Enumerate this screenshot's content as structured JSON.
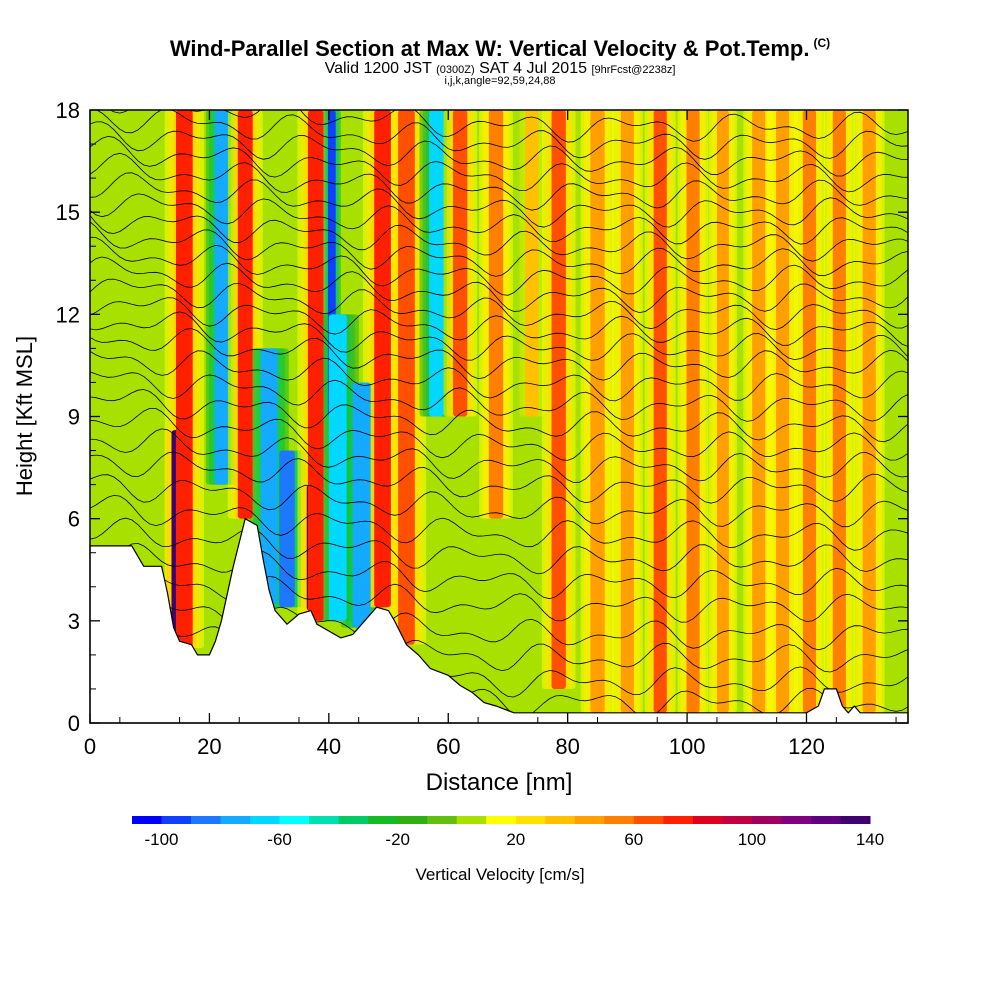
{
  "header": {
    "title": "Wind-Parallel Section at Max W: Vertical Velocity & Pot.Temp.",
    "title_tag": "(C)",
    "valid_prefix": "Valid 1200 JST",
    "valid_utc": "(0300Z)",
    "valid_date": "SAT 4 Jul 2015",
    "forecast": "[9hrFcst@2238z]",
    "indices": "i,j,k,angle=92,59,24,88"
  },
  "chart_data": {
    "type": "heatmap",
    "xlabel": "Distance [nm]",
    "ylabel": "Height [Kft MSL]",
    "xlim": [
      0,
      137
    ],
    "ylim": [
      0,
      18
    ],
    "x_ticks": [
      0,
      20,
      40,
      60,
      80,
      100,
      120
    ],
    "y_ticks": [
      0,
      3,
      6,
      9,
      12,
      15,
      18
    ],
    "terrain": [
      [
        0,
        5.2
      ],
      [
        7,
        5.2
      ],
      [
        9,
        4.6
      ],
      [
        12,
        4.6
      ],
      [
        13,
        3.8
      ],
      [
        14,
        2.8
      ],
      [
        15,
        2.4
      ],
      [
        17,
        2.3
      ],
      [
        18,
        2.0
      ],
      [
        20,
        2.0
      ],
      [
        21,
        2.4
      ],
      [
        22,
        3.0
      ],
      [
        24,
        4.6
      ],
      [
        26,
        6.0
      ],
      [
        28,
        5.8
      ],
      [
        29,
        4.8
      ],
      [
        30,
        3.9
      ],
      [
        31,
        3.3
      ],
      [
        33,
        2.9
      ],
      [
        35,
        3.2
      ],
      [
        37,
        3.3
      ],
      [
        38,
        2.9
      ],
      [
        40,
        2.7
      ],
      [
        42,
        2.5
      ],
      [
        44,
        2.6
      ],
      [
        46,
        3.0
      ],
      [
        48,
        3.4
      ],
      [
        50,
        3.3
      ],
      [
        51,
        3.0
      ],
      [
        53,
        2.3
      ],
      [
        55,
        2.0
      ],
      [
        57,
        1.6
      ],
      [
        60,
        1.4
      ],
      [
        62,
        1.1
      ],
      [
        64,
        0.9
      ],
      [
        66,
        0.6
      ],
      [
        68,
        0.5
      ],
      [
        71,
        0.3
      ],
      [
        74,
        0.3
      ],
      [
        85,
        0.3
      ],
      [
        100,
        0.3
      ],
      [
        120,
        0.3
      ],
      [
        122,
        0.5
      ],
      [
        123,
        1.0
      ],
      [
        125,
        1.0
      ],
      [
        126,
        0.5
      ],
      [
        127,
        0.3
      ],
      [
        128,
        0.5
      ],
      [
        129,
        0.3
      ],
      [
        137,
        0.3
      ]
    ],
    "w_bands": [
      {
        "x": 14.5,
        "w": 1.7,
        "v": 130,
        "z0": 2.6,
        "z1": 8.6
      },
      {
        "x": 15.8,
        "w": 2.8,
        "v": 70,
        "z0": 2.2,
        "z1": 18
      },
      {
        "x": 22,
        "w": 2.2,
        "v": -75,
        "z0": 7,
        "z1": 18
      },
      {
        "x": 26,
        "w": 2.5,
        "v": 70,
        "z0": 6,
        "z1": 18
      },
      {
        "x": 30,
        "w": 2.8,
        "v": -75,
        "z0": 3.5,
        "z1": 11
      },
      {
        "x": 33,
        "w": 2.6,
        "v": -85,
        "z0": 3.4,
        "z1": 8
      },
      {
        "x": 37,
        "w": 1.4,
        "v": 120,
        "z0": 3.3,
        "z1": 7
      },
      {
        "x": 37.8,
        "w": 2.6,
        "v": 70,
        "z0": 3,
        "z1": 18
      },
      {
        "x": 40.5,
        "w": 1.3,
        "v": -100,
        "z0": 9,
        "z1": 18
      },
      {
        "x": 41.5,
        "w": 3,
        "v": -65,
        "z0": 3,
        "z1": 12
      },
      {
        "x": 45.5,
        "w": 3,
        "v": -80,
        "z0": 2.8,
        "z1": 10
      },
      {
        "x": 49,
        "w": 2.8,
        "v": 70,
        "z0": 3.4,
        "z1": 18
      },
      {
        "x": 53,
        "w": 1.4,
        "v": 120,
        "z0": 2.5,
        "z1": 7
      },
      {
        "x": 53,
        "w": 2.8,
        "v": 65,
        "z0": 2.3,
        "z1": 18
      },
      {
        "x": 58,
        "w": 2.4,
        "v": -65,
        "z0": 9,
        "z1": 18
      },
      {
        "x": 62,
        "w": 2.4,
        "v": 65,
        "z0": 9,
        "z1": 18
      },
      {
        "x": 68,
        "w": 2.4,
        "v": 50,
        "z0": 6,
        "z1": 18
      },
      {
        "x": 74,
        "w": 2.2,
        "v": 30,
        "z0": 9,
        "z1": 18
      },
      {
        "x": 78.5,
        "w": 2.4,
        "v": 60,
        "z0": 1,
        "z1": 18
      },
      {
        "x": 85,
        "w": 2.4,
        "v": 45,
        "z0": 0.3,
        "z1": 18
      },
      {
        "x": 90,
        "w": 2.2,
        "v": 45,
        "z0": 0.3,
        "z1": 18
      },
      {
        "x": 95.5,
        "w": 2.2,
        "v": 60,
        "z0": 0.3,
        "z1": 18
      },
      {
        "x": 101,
        "w": 2.2,
        "v": 50,
        "z0": 0.3,
        "z1": 18
      },
      {
        "x": 106,
        "w": 2,
        "v": 40,
        "z0": 0.3,
        "z1": 18
      },
      {
        "x": 112,
        "w": 2.2,
        "v": 45,
        "z0": 0.3,
        "z1": 18
      },
      {
        "x": 116,
        "w": 2.2,
        "v": 45,
        "z0": 0.3,
        "z1": 18
      },
      {
        "x": 120.5,
        "w": 2.2,
        "v": 50,
        "z0": 0.3,
        "z1": 18
      },
      {
        "x": 125.5,
        "w": 2.2,
        "v": 50,
        "z0": 0.3,
        "z1": 18
      },
      {
        "x": 130.5,
        "w": 2.2,
        "v": 45,
        "z0": 0.3,
        "z1": 18
      }
    ],
    "theta_levels": [
      0.6,
      1.2,
      1.9,
      2.6,
      3.4,
      4.1,
      4.8,
      5.5,
      6.2,
      6.9,
      7.5,
      8.1,
      8.7,
      9.3,
      9.9,
      10.5,
      11.0,
      11.5,
      12.0,
      12.5,
      13.0,
      13.5,
      14.0,
      14.5,
      15.0,
      15.5,
      16.0,
      16.5,
      17.0,
      17.5
    ]
  },
  "colorbar": {
    "label": "Vertical Velocity [cm/s]",
    "ticks": [
      "-100",
      "-60",
      "-20",
      "20",
      "60",
      "100",
      "140"
    ],
    "colors": [
      "#0000ff",
      "#1040ff",
      "#1e78ff",
      "#14aaff",
      "#00d8ff",
      "#00ffff",
      "#00e0b0",
      "#00cc66",
      "#14bb22",
      "#30b010",
      "#60c010",
      "#a8e000",
      "#ffff00",
      "#ffe000",
      "#ffc000",
      "#ffa000",
      "#ff7f00",
      "#ff5000",
      "#ff2000",
      "#e00020",
      "#c00040",
      "#a00060",
      "#800080",
      "#600080",
      "#400070"
    ]
  }
}
